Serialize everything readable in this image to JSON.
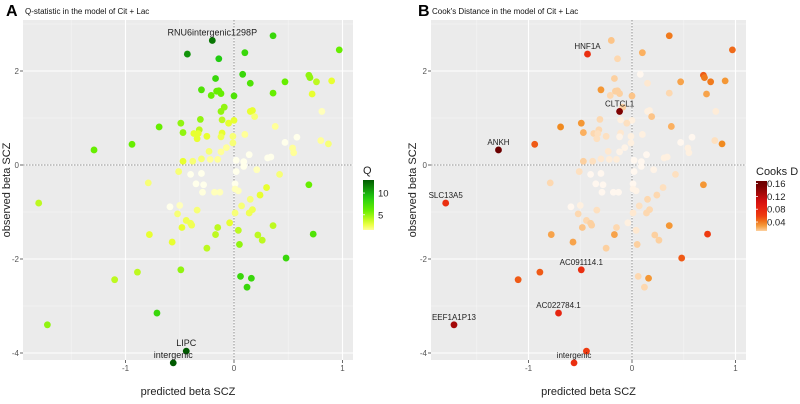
{
  "chart_data": {
    "type": "scatter",
    "points_columns": [
      "predicted_beta_SCZ",
      "observed_beta_SCZ",
      "Q",
      "Cooks_D"
    ],
    "points": [
      [
        -0.2,
        2.65,
        12,
        0.015
      ],
      [
        0.36,
        2.75,
        8,
        0.04
      ],
      [
        -0.43,
        2.36,
        11,
        0.07
      ],
      [
        -0.14,
        2.26,
        9,
        0.01
      ],
      [
        0.1,
        2.39,
        8,
        0.02
      ],
      [
        0.97,
        2.45,
        6,
        0.045
      ],
      [
        0.08,
        1.93,
        8,
        0.002
      ],
      [
        -0.17,
        1.84,
        8,
        0.012
      ],
      [
        0.15,
        1.74,
        7,
        0.006
      ],
      [
        0.47,
        1.77,
        6,
        0.025
      ],
      [
        0.69,
        1.91,
        5,
        0.05
      ],
      [
        0.7,
        1.86,
        5,
        0.04
      ],
      [
        0.76,
        1.77,
        4,
        0.04
      ],
      [
        0.9,
        1.79,
        3,
        0.03
      ],
      [
        -0.3,
        1.6,
        7,
        0.03
      ],
      [
        -0.16,
        1.57,
        6,
        0.012
      ],
      [
        -0.14,
        1.58,
        6,
        0.012
      ],
      [
        -0.21,
        1.48,
        6,
        0.01
      ],
      [
        -0.12,
        1.52,
        6,
        0.012
      ],
      [
        0.0,
        1.47,
        7,
        0.015
      ],
      [
        0.36,
        1.53,
        6,
        0.01
      ],
      [
        0.72,
        1.51,
        3,
        0.025
      ],
      [
        -0.09,
        1.23,
        5,
        0.012
      ],
      [
        -0.12,
        1.14,
        5,
        0.15
      ],
      [
        0.15,
        1.14,
        3,
        0.004
      ],
      [
        0.17,
        1.16,
        3,
        0.004
      ],
      [
        0.19,
        1.03,
        2,
        0.015
      ],
      [
        0.81,
        1.14,
        1,
        0.005
      ],
      [
        -0.31,
        0.97,
        5,
        0.01
      ],
      [
        -0.11,
        0.96,
        4,
        0.004
      ],
      [
        0.0,
        0.95,
        3,
        0.004
      ],
      [
        -0.05,
        0.89,
        3,
        0.008
      ],
      [
        -0.69,
        0.81,
        6,
        0.035
      ],
      [
        -0.49,
        0.89,
        5,
        0.03
      ],
      [
        0.38,
        0.82,
        1.5,
        0.02
      ],
      [
        -0.47,
        0.69,
        5,
        0.02
      ],
      [
        -0.32,
        0.75,
        4,
        0.01
      ],
      [
        -0.37,
        0.67,
        3,
        0.01
      ],
      [
        -0.33,
        0.67,
        3,
        0.008
      ],
      [
        -0.11,
        0.68,
        3,
        0.006
      ],
      [
        0.1,
        0.65,
        1.5,
        0.004
      ],
      [
        -0.25,
        0.61,
        3,
        0.008
      ],
      [
        -0.12,
        0.6,
        2.5,
        0.003
      ],
      [
        -0.34,
        0.56,
        3,
        0.008
      ],
      [
        -0.01,
        0.61,
        2,
        0.004
      ],
      [
        -0.01,
        0.47,
        2,
        0.004
      ],
      [
        -0.94,
        0.44,
        6,
        0.05
      ],
      [
        -1.29,
        0.32,
        6,
        0.16
      ],
      [
        0.58,
        0.59,
        0.3,
        0.002
      ],
      [
        0.47,
        0.48,
        0.3,
        0.002
      ],
      [
        0.8,
        0.52,
        1.5,
        0.008
      ],
      [
        0.87,
        0.45,
        2,
        0.035
      ],
      [
        0.54,
        0.36,
        1.5,
        0.004
      ],
      [
        0.55,
        0.26,
        1.5,
        0.004
      ],
      [
        -0.07,
        0.37,
        1.5,
        0.003
      ],
      [
        -0.12,
        0.28,
        1.5,
        0.003
      ],
      [
        -0.23,
        0.29,
        2,
        0.006
      ],
      [
        -0.3,
        0.13,
        2,
        0.006
      ],
      [
        -0.22,
        0.12,
        1.5,
        0.005
      ],
      [
        -0.15,
        0.12,
        1.5,
        0.005
      ],
      [
        -0.47,
        0.08,
        3,
        0.012
      ],
      [
        -0.38,
        0.08,
        2,
        0.008
      ],
      [
        0.14,
        0.22,
        0.3,
        0.002
      ],
      [
        0.02,
        0.1,
        0.3,
        0.002
      ],
      [
        0.09,
        0.07,
        0.3,
        0.002
      ],
      [
        0.09,
        -0.03,
        0.3,
        0.002
      ],
      [
        0.31,
        0.15,
        0.3,
        0.004
      ],
      [
        0.34,
        0.17,
        0.3,
        0.004
      ],
      [
        0.02,
        -0.14,
        0.3,
        0.002
      ],
      [
        0.21,
        -0.1,
        1,
        0.003
      ],
      [
        0.42,
        -0.2,
        2,
        0.008
      ],
      [
        -0.51,
        -0.14,
        2,
        0.008
      ],
      [
        -0.4,
        -0.2,
        0.3,
        0.002
      ],
      [
        -0.3,
        -0.18,
        0.3,
        0.002
      ],
      [
        -0.79,
        -0.38,
        2,
        0.01
      ],
      [
        -0.35,
        -0.4,
        0.3,
        0.002
      ],
      [
        -0.28,
        -0.42,
        0.3,
        0.002
      ],
      [
        0.01,
        -0.4,
        0.3,
        0.002
      ],
      [
        0.69,
        -0.42,
        6,
        0.03
      ],
      [
        0.01,
        -0.51,
        1,
        0.003
      ],
      [
        0.04,
        -0.55,
        1,
        0.003
      ],
      [
        0.3,
        -0.48,
        3,
        0.008
      ],
      [
        -0.29,
        -0.58,
        0.5,
        0.002
      ],
      [
        -0.18,
        -0.58,
        1,
        0.002
      ],
      [
        -0.13,
        -0.58,
        1,
        0.002
      ],
      [
        0.24,
        -0.64,
        3,
        0.01
      ],
      [
        0.15,
        -0.73,
        2,
        0.01
      ],
      [
        -1.8,
        -0.81,
        4,
        0.07
      ],
      [
        -0.59,
        -0.89,
        0.3,
        0.002
      ],
      [
        -0.5,
        -0.86,
        1,
        0.004
      ],
      [
        -0.34,
        -0.96,
        2,
        0.008
      ],
      [
        -0.52,
        -1.04,
        2,
        0.01
      ],
      [
        -0.44,
        -1.18,
        2.5,
        0.01
      ],
      [
        -0.4,
        -1.24,
        2.5,
        0.012
      ],
      [
        -0.39,
        -1.28,
        2.5,
        0.012
      ],
      [
        -0.48,
        -1.33,
        3,
        0.015
      ],
      [
        -0.78,
        -1.48,
        3,
        0.025
      ],
      [
        -0.57,
        -1.64,
        3,
        0.025
      ],
      [
        -0.15,
        -1.33,
        4,
        0.01
      ],
      [
        -0.17,
        -1.48,
        4,
        0.025
      ],
      [
        -0.25,
        -1.77,
        4,
        0.012
      ],
      [
        -0.04,
        -1.23,
        3,
        0.004
      ],
      [
        0.01,
        -1.02,
        2,
        0.006
      ],
      [
        0.07,
        -0.87,
        2,
        0.008
      ],
      [
        0.14,
        -1.02,
        2.5,
        0.01
      ],
      [
        0.17,
        -0.95,
        2.5,
        0.01
      ],
      [
        0.04,
        -1.39,
        4,
        0.006
      ],
      [
        0.22,
        -1.49,
        4,
        0.012
      ],
      [
        0.26,
        -1.6,
        4,
        0.012
      ],
      [
        0.36,
        -1.29,
        4,
        0.03
      ],
      [
        0.05,
        -1.69,
        5,
        0.012
      ],
      [
        0.73,
        -1.47,
        7,
        0.06
      ],
      [
        0.48,
        -1.98,
        8,
        0.05
      ],
      [
        -0.49,
        -2.23,
        5,
        0.07
      ],
      [
        -0.89,
        -2.28,
        4,
        0.05
      ],
      [
        -1.1,
        -2.44,
        4,
        0.05
      ],
      [
        0.06,
        -2.37,
        8,
        0.01
      ],
      [
        0.16,
        -2.41,
        8,
        0.03
      ],
      [
        0.12,
        -2.6,
        8,
        0.01
      ],
      [
        -0.71,
        -3.15,
        8,
        0.08
      ],
      [
        -1.72,
        -3.4,
        5,
        0.13
      ],
      [
        -0.44,
        -3.96,
        13,
        0.06
      ],
      [
        -0.56,
        -4.21,
        13,
        0.07
      ]
    ],
    "xlim": [
      -1.94,
      1.1
    ],
    "ylim": [
      -4.5,
      3.05
    ],
    "xticks": [
      "-1",
      "0",
      "1"
    ],
    "xtick_values": [
      -1,
      0,
      1
    ],
    "yticks": [
      "2",
      "0",
      "-2",
      "-4"
    ],
    "ytick_values": [
      2,
      0,
      -2,
      -4
    ],
    "grid": true,
    "reference_lines": {
      "x": 0,
      "y": 0,
      "style": "dotted"
    },
    "panels": [
      {
        "letter": "A",
        "title": "Q-statistic in the model of  Cit + Lac",
        "xlabel": "predicted beta SCZ",
        "ylabel": "observed beta SCZ",
        "color_variable": "Q",
        "legend": {
          "title": "Q",
          "ticks": [
            "10",
            "5"
          ],
          "tick_values": [
            10,
            5
          ],
          "range": [
            1.5,
            13
          ],
          "placement": "right"
        },
        "annotations": [
          {
            "text": "RNU6intergenic1298P",
            "x": -0.2,
            "y": 2.65
          },
          {
            "text": "LIPC",
            "x": -0.44,
            "y": -3.96
          },
          {
            "text": "intergenic",
            "x": -0.56,
            "y": -4.21
          }
        ]
      },
      {
        "letter": "B",
        "title": "Cook's Distance in the model of  Cit + Lac",
        "xlabel": "predicted beta SCZ",
        "ylabel": "observed beta SCZ",
        "color_variable": "Cooks_D",
        "legend": {
          "title": "Cooks D",
          "ticks": [
            "0.16",
            "0.12",
            "0.08",
            "0.04"
          ],
          "tick_values": [
            0.16,
            0.12,
            0.08,
            0.04
          ],
          "range": [
            0.012,
            0.168
          ],
          "placement": "right"
        },
        "annotations": [
          {
            "text": "HNF1A",
            "x": -0.43,
            "y": 2.36
          },
          {
            "text": "CLTCL1",
            "x": -0.12,
            "y": 1.14
          },
          {
            "text": "ANKH",
            "x": -1.29,
            "y": 0.32
          },
          {
            "text": "SLC13A5",
            "x": -1.8,
            "y": -0.81
          },
          {
            "text": "AC091114.1",
            "x": -0.49,
            "y": -2.23
          },
          {
            "text": "AC022784.1",
            "x": -0.71,
            "y": -3.15
          },
          {
            "text": "EEF1A1P13",
            "x": -1.72,
            "y": -3.4
          },
          {
            "text": "intergenic",
            "x": -0.56,
            "y": -4.21
          }
        ]
      }
    ],
    "colors": {
      "panel_bg": "#ebebeb",
      "q_scale": [
        "#ffffff",
        "#ffff99",
        "#e8ff30",
        "#66ee00",
        "#22cc11",
        "#005a00"
      ],
      "cd_scale": [
        "#ffffff",
        "#fde0c0",
        "#fbb060",
        "#f08a20",
        "#ee3a10",
        "#dd1010",
        "#6b0000"
      ]
    }
  }
}
